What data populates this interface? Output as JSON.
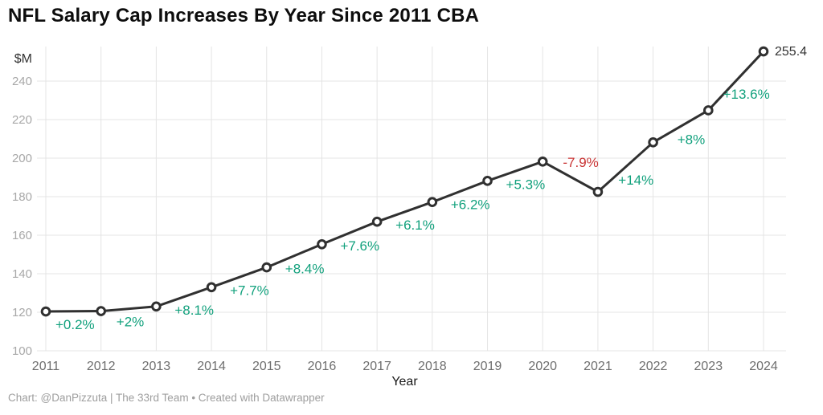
{
  "header": {
    "title": "NFL Salary Cap Increases By Year Since 2011 CBA"
  },
  "footer": {
    "credit": "Chart: @DanPizzuta | The 33rd Team • Created with Datawrapper"
  },
  "chart_data": {
    "type": "line",
    "title": "NFL Salary Cap Increases By Year Since 2011 CBA",
    "xlabel": "Year",
    "ylabel": "$M",
    "x": [
      2011,
      2012,
      2013,
      2014,
      2015,
      2016,
      2017,
      2018,
      2019,
      2020,
      2021,
      2022,
      2023,
      2024
    ],
    "values": [
      120.4,
      120.6,
      123.0,
      133.0,
      143.3,
      155.3,
      167.0,
      177.2,
      188.2,
      198.2,
      182.5,
      208.2,
      224.8,
      255.4
    ],
    "pct_change_labels": [
      "+0.2%",
      "+2%",
      "+8.1%",
      "+7.7%",
      "+8.4%",
      "+7.6%",
      "+6.1%",
      "+6.2%",
      "+5.3%",
      "-7.9%",
      "+14%",
      "+8%",
      "+13.6%"
    ],
    "end_label": "255.4",
    "ylim": [
      100,
      260
    ],
    "yticks": [
      100,
      120,
      140,
      160,
      180,
      200,
      220,
      240
    ],
    "grid": true,
    "legend": "none",
    "colors": {
      "line": "#303030",
      "marker_fill": "#ffffff",
      "positive_label": "#12a17d",
      "negative_label": "#c93434",
      "grid": "#e4e4e4",
      "y_tick_text": "#a8a8a8",
      "x_tick_text": "#6e6e6e",
      "ylabel_text": "#333333",
      "xlabel_text": "#171717",
      "end_label_text": "#333333"
    }
  }
}
